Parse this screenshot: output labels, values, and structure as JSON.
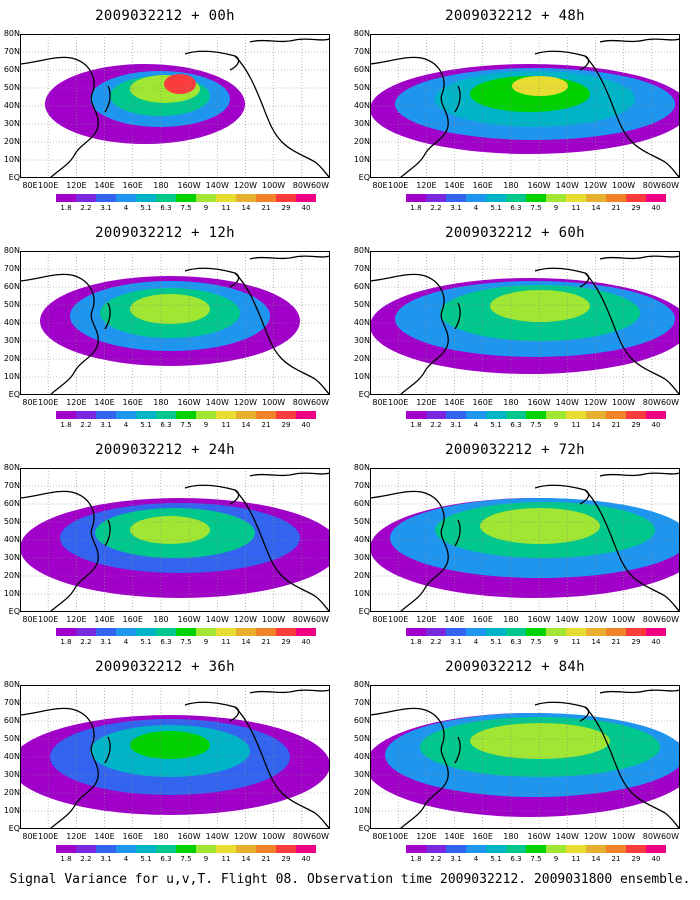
{
  "footer": "Signal Variance for u,v,T. Flight 08. Observation time 2009032212. 2009031800 ensemble.",
  "lat_labels": [
    "80N",
    "70N",
    "60N",
    "50N",
    "40N",
    "30N",
    "20N",
    "10N",
    "EQ"
  ],
  "lon_labels": [
    "80E",
    "100E",
    "120E",
    "140E",
    "160E",
    "180",
    "160W",
    "140W",
    "120W",
    "100W",
    "80W",
    "60W"
  ],
  "colorbar": {
    "labels": [
      "1.8",
      "2.2",
      "3.1",
      "4",
      "5.1",
      "6.3",
      "7.5",
      "9",
      "11",
      "14",
      "21",
      "29",
      "40"
    ],
    "colors": [
      "#a000c8",
      "#7a28e0",
      "#3264f0",
      "#1e96f0",
      "#00b4c8",
      "#00c88c",
      "#00d200",
      "#a0e632",
      "#e6dc32",
      "#e6af2d",
      "#f08228",
      "#fa3c3c",
      "#f00082"
    ]
  },
  "panels": [
    {
      "title": "2009032212 + 00h"
    },
    {
      "title": "2009032212 + 48h"
    },
    {
      "title": "2009032212 + 12h"
    },
    {
      "title": "2009032212 + 60h"
    },
    {
      "title": "2009032212 + 24h"
    },
    {
      "title": "2009032212 + 72h"
    },
    {
      "title": "2009032212 + 36h"
    },
    {
      "title": "2009032212 + 84h"
    }
  ]
}
